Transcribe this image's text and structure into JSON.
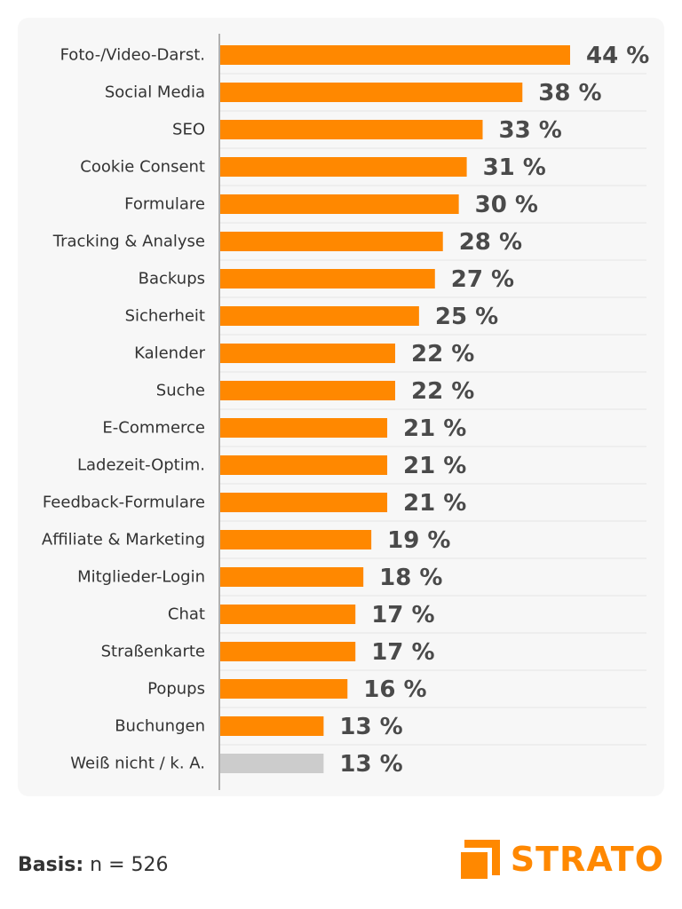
{
  "chart_data": {
    "type": "bar",
    "orientation": "horizontal",
    "categories": [
      "Foto-/Video-Darst.",
      "Social Media",
      "SEO",
      "Cookie Consent",
      "Formulare",
      "Tracking & Analyse",
      "Backups",
      "Sicherheit",
      "Kalender",
      "Suche",
      "E-Commerce",
      "Ladezeit-Optim.",
      "Feedback-Formulare",
      "Affiliate & Marketing",
      "Mitglieder-Login",
      "Chat",
      "Straßenkarte",
      "Popups",
      "Buchungen",
      "Weiß nicht / k. A."
    ],
    "values": [
      44,
      38,
      33,
      31,
      30,
      28,
      27,
      25,
      22,
      22,
      21,
      21,
      21,
      19,
      18,
      17,
      17,
      16,
      13,
      13
    ],
    "value_labels": [
      "44 %",
      "38 %",
      "33 %",
      "31 %",
      "30 %",
      "28 %",
      "27 %",
      "25 %",
      "22 %",
      "22 %",
      "21 %",
      "21 %",
      "21 %",
      "19 %",
      "18 %",
      "17 %",
      "17 %",
      "16 %",
      "13 %",
      "13 %"
    ],
    "bar_colors": [
      "#ff8800",
      "#ff8800",
      "#ff8800",
      "#ff8800",
      "#ff8800",
      "#ff8800",
      "#ff8800",
      "#ff8800",
      "#ff8800",
      "#ff8800",
      "#ff8800",
      "#ff8800",
      "#ff8800",
      "#ff8800",
      "#ff8800",
      "#ff8800",
      "#ff8800",
      "#ff8800",
      "#ff8800",
      "#cccccc"
    ],
    "xlim": [
      0,
      50
    ],
    "title": "",
    "xlabel": "",
    "ylabel": "",
    "grid": "horizontal-row-separators",
    "legend": "none"
  },
  "footer": {
    "basis_label": "Basis:",
    "basis_value": " n = 526"
  },
  "logo": {
    "text": "STRATO",
    "color": "#ff8800"
  }
}
